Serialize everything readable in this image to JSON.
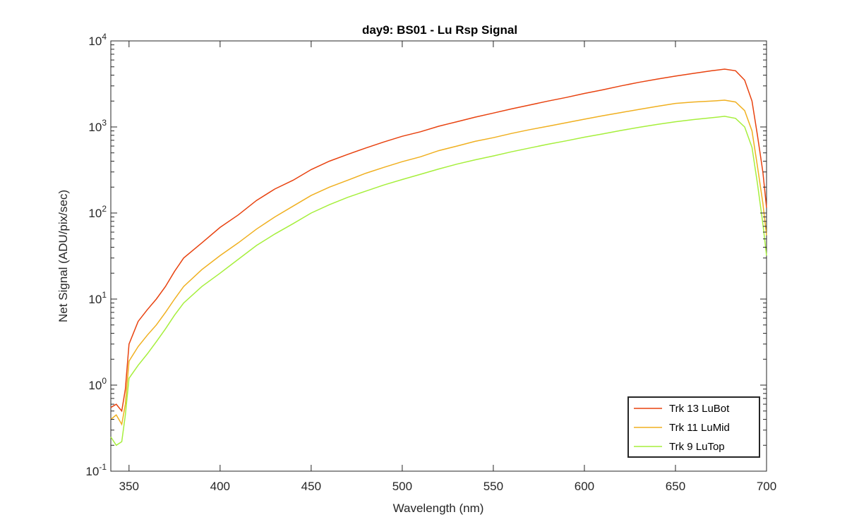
{
  "chart_data": {
    "type": "line",
    "title": "day9: BS01 - Lu Rsp Signal",
    "xlabel": "Wavelength (nm)",
    "ylabel": "Net Signal (ADU/pix/sec)",
    "xlim": [
      340,
      700
    ],
    "ylim": [
      0.1,
      10000
    ],
    "yscale": "log",
    "grid": false,
    "legend_position": "bottom-right",
    "x_ticks": [
      "350",
      "400",
      "450",
      "500",
      "550",
      "600",
      "650",
      "700"
    ],
    "y_ticks": [
      {
        "base": "10",
        "exp": "-1"
      },
      {
        "base": "10",
        "exp": "0"
      },
      {
        "base": "10",
        "exp": "1"
      },
      {
        "base": "10",
        "exp": "2"
      },
      {
        "base": "10",
        "exp": "3"
      },
      {
        "base": "10",
        "exp": "4"
      }
    ],
    "series": [
      {
        "name": "Trk 13 LuBot",
        "color": "#e8420f",
        "points": [
          [
            340,
            0.55
          ],
          [
            343,
            0.6
          ],
          [
            346,
            0.5
          ],
          [
            348,
            0.9
          ],
          [
            350,
            3.0
          ],
          [
            355,
            5.5
          ],
          [
            360,
            7.5
          ],
          [
            365,
            10
          ],
          [
            370,
            14
          ],
          [
            375,
            21
          ],
          [
            380,
            30
          ],
          [
            390,
            45
          ],
          [
            400,
            68
          ],
          [
            410,
            95
          ],
          [
            420,
            140
          ],
          [
            430,
            190
          ],
          [
            440,
            240
          ],
          [
            450,
            320
          ],
          [
            460,
            400
          ],
          [
            470,
            480
          ],
          [
            480,
            570
          ],
          [
            490,
            670
          ],
          [
            500,
            780
          ],
          [
            510,
            880
          ],
          [
            520,
            1020
          ],
          [
            530,
            1150
          ],
          [
            540,
            1300
          ],
          [
            550,
            1450
          ],
          [
            560,
            1620
          ],
          [
            570,
            1800
          ],
          [
            580,
            2000
          ],
          [
            590,
            2200
          ],
          [
            600,
            2450
          ],
          [
            610,
            2700
          ],
          [
            620,
            3000
          ],
          [
            630,
            3300
          ],
          [
            640,
            3600
          ],
          [
            650,
            3900
          ],
          [
            660,
            4200
          ],
          [
            670,
            4500
          ],
          [
            677,
            4700
          ],
          [
            683,
            4500
          ],
          [
            688,
            3500
          ],
          [
            692,
            2000
          ],
          [
            695,
            800
          ],
          [
            698,
            300
          ],
          [
            700,
            115
          ]
        ]
      },
      {
        "name": "Trk 11 LuMid",
        "color": "#f0b020",
        "points": [
          [
            340,
            0.4
          ],
          [
            343,
            0.45
          ],
          [
            346,
            0.35
          ],
          [
            348,
            0.6
          ],
          [
            350,
            1.9
          ],
          [
            355,
            2.8
          ],
          [
            360,
            3.8
          ],
          [
            365,
            5
          ],
          [
            370,
            7
          ],
          [
            375,
            10
          ],
          [
            380,
            14
          ],
          [
            390,
            22
          ],
          [
            400,
            32
          ],
          [
            410,
            45
          ],
          [
            420,
            65
          ],
          [
            430,
            90
          ],
          [
            440,
            120
          ],
          [
            450,
            160
          ],
          [
            460,
            200
          ],
          [
            470,
            240
          ],
          [
            480,
            290
          ],
          [
            490,
            340
          ],
          [
            500,
            395
          ],
          [
            510,
            450
          ],
          [
            520,
            530
          ],
          [
            530,
            600
          ],
          [
            540,
            680
          ],
          [
            550,
            750
          ],
          [
            560,
            840
          ],
          [
            570,
            930
          ],
          [
            580,
            1020
          ],
          [
            590,
            1120
          ],
          [
            600,
            1230
          ],
          [
            610,
            1350
          ],
          [
            620,
            1470
          ],
          [
            630,
            1600
          ],
          [
            640,
            1740
          ],
          [
            650,
            1880
          ],
          [
            660,
            1950
          ],
          [
            670,
            2000
          ],
          [
            677,
            2050
          ],
          [
            683,
            1950
          ],
          [
            688,
            1550
          ],
          [
            692,
            900
          ],
          [
            695,
            350
          ],
          [
            698,
            130
          ],
          [
            700,
            55
          ]
        ]
      },
      {
        "name": "Trk 9 LuTop",
        "color": "#a6ef3c",
        "points": [
          [
            340,
            0.25
          ],
          [
            343,
            0.2
          ],
          [
            346,
            0.22
          ],
          [
            348,
            0.45
          ],
          [
            350,
            1.2
          ],
          [
            355,
            1.7
          ],
          [
            360,
            2.3
          ],
          [
            365,
            3.2
          ],
          [
            370,
            4.5
          ],
          [
            375,
            6.5
          ],
          [
            380,
            9
          ],
          [
            390,
            14
          ],
          [
            400,
            20
          ],
          [
            410,
            29
          ],
          [
            420,
            42
          ],
          [
            430,
            57
          ],
          [
            440,
            75
          ],
          [
            450,
            100
          ],
          [
            460,
            125
          ],
          [
            470,
            152
          ],
          [
            480,
            180
          ],
          [
            490,
            212
          ],
          [
            500,
            245
          ],
          [
            510,
            282
          ],
          [
            520,
            325
          ],
          [
            530,
            370
          ],
          [
            540,
            415
          ],
          [
            550,
            460
          ],
          [
            560,
            515
          ],
          [
            570,
            570
          ],
          [
            580,
            630
          ],
          [
            590,
            690
          ],
          [
            600,
            760
          ],
          [
            610,
            830
          ],
          [
            620,
            910
          ],
          [
            630,
            990
          ],
          [
            640,
            1070
          ],
          [
            650,
            1150
          ],
          [
            660,
            1220
          ],
          [
            670,
            1280
          ],
          [
            677,
            1330
          ],
          [
            683,
            1260
          ],
          [
            688,
            1000
          ],
          [
            692,
            580
          ],
          [
            695,
            220
          ],
          [
            698,
            75
          ],
          [
            700,
            32
          ]
        ]
      }
    ]
  }
}
